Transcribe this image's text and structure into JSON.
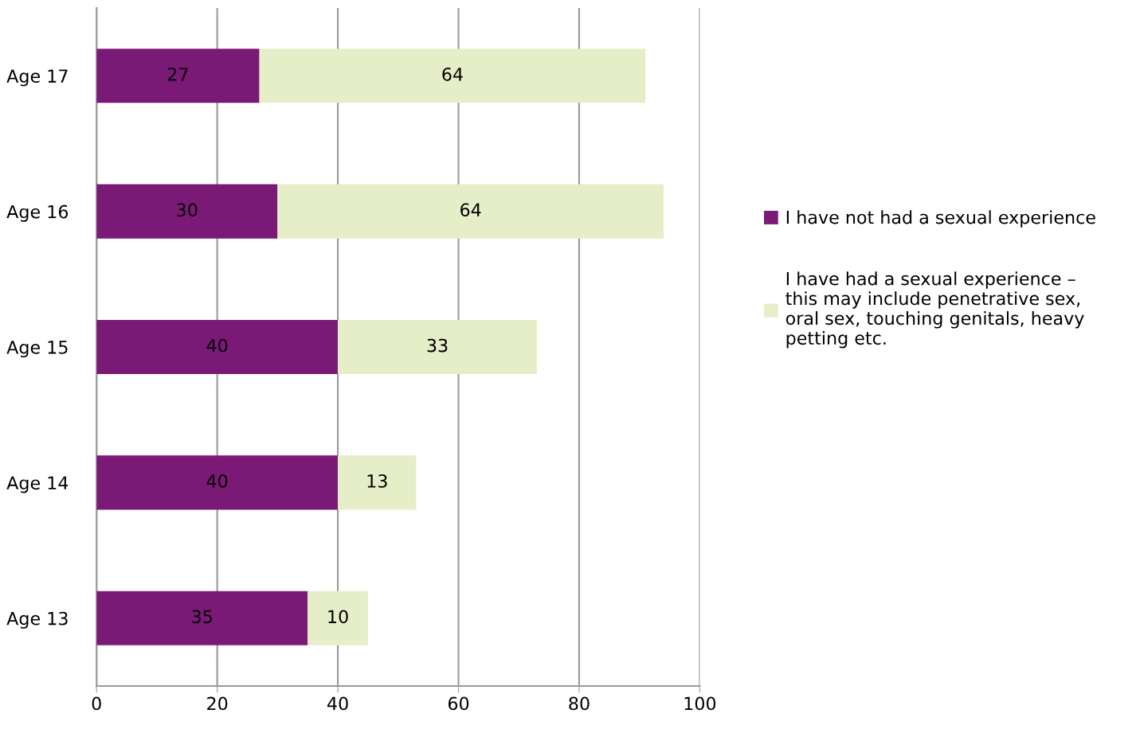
{
  "chart_data": {
    "type": "bar",
    "orientation": "horizontal",
    "stacked": true,
    "categories": [
      "Age 17",
      "Age 16",
      "Age 15",
      "Age 14",
      "Age 13"
    ],
    "series": [
      {
        "name": "I have not had a sexual experience",
        "color": "#7b1a76",
        "values": [
          27,
          30,
          40,
          40,
          35
        ]
      },
      {
        "name": "I have had a sexual experience –\nthis may include penetrative sex,\noral sex, touching genitals, heavy\npetting etc.",
        "color": "#e6eec8",
        "values": [
          64,
          64,
          33,
          13,
          10
        ]
      }
    ],
    "xlim": [
      0,
      100
    ],
    "xticks": [
      0,
      20,
      40,
      60,
      80,
      100
    ],
    "grid": "x",
    "legend": "right",
    "data_labels": true
  }
}
